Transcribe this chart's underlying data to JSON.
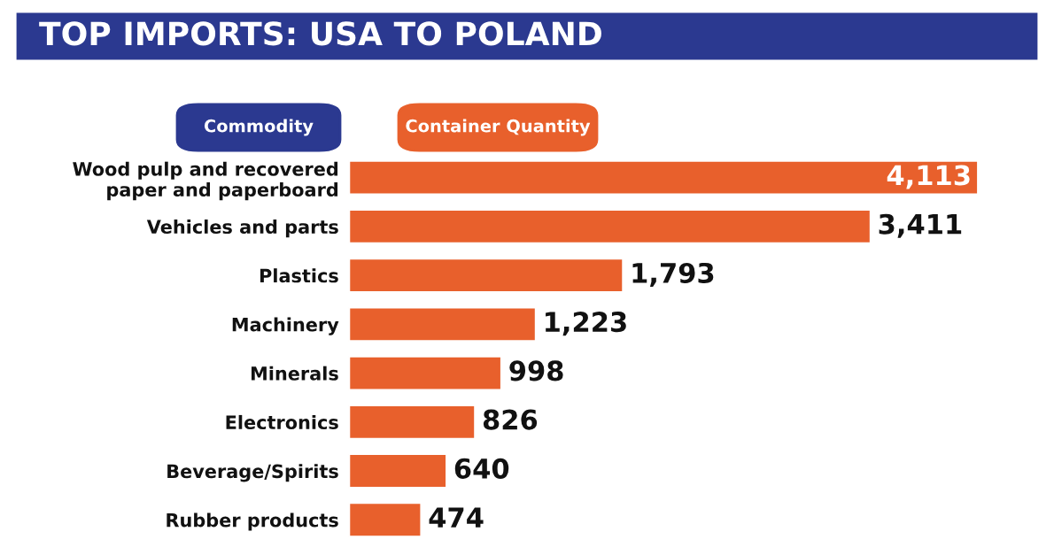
{
  "chart_data": {
    "type": "bar",
    "orientation": "horizontal",
    "title": "TOP IMPORTS: USA TO POLAND",
    "ylabel": "Commodity",
    "xlabel": "Container Quantity",
    "categories": [
      "Wood pulp and recovered\npaper and paperboard",
      "Vehicles and parts",
      "Plastics",
      "Machinery",
      "Minerals",
      "Electronics",
      "Beverage/Spirits",
      "Rubber products"
    ],
    "values": [
      4113,
      3411,
      1793,
      1223,
      998,
      826,
      640,
      474
    ],
    "value_labels": [
      "4,113",
      "3,411",
      "1,793",
      "1,223",
      "998",
      "826",
      "640",
      "474"
    ],
    "color": "#e8602c",
    "tick_labels": "y",
    "grid": false,
    "legend": false
  }
}
